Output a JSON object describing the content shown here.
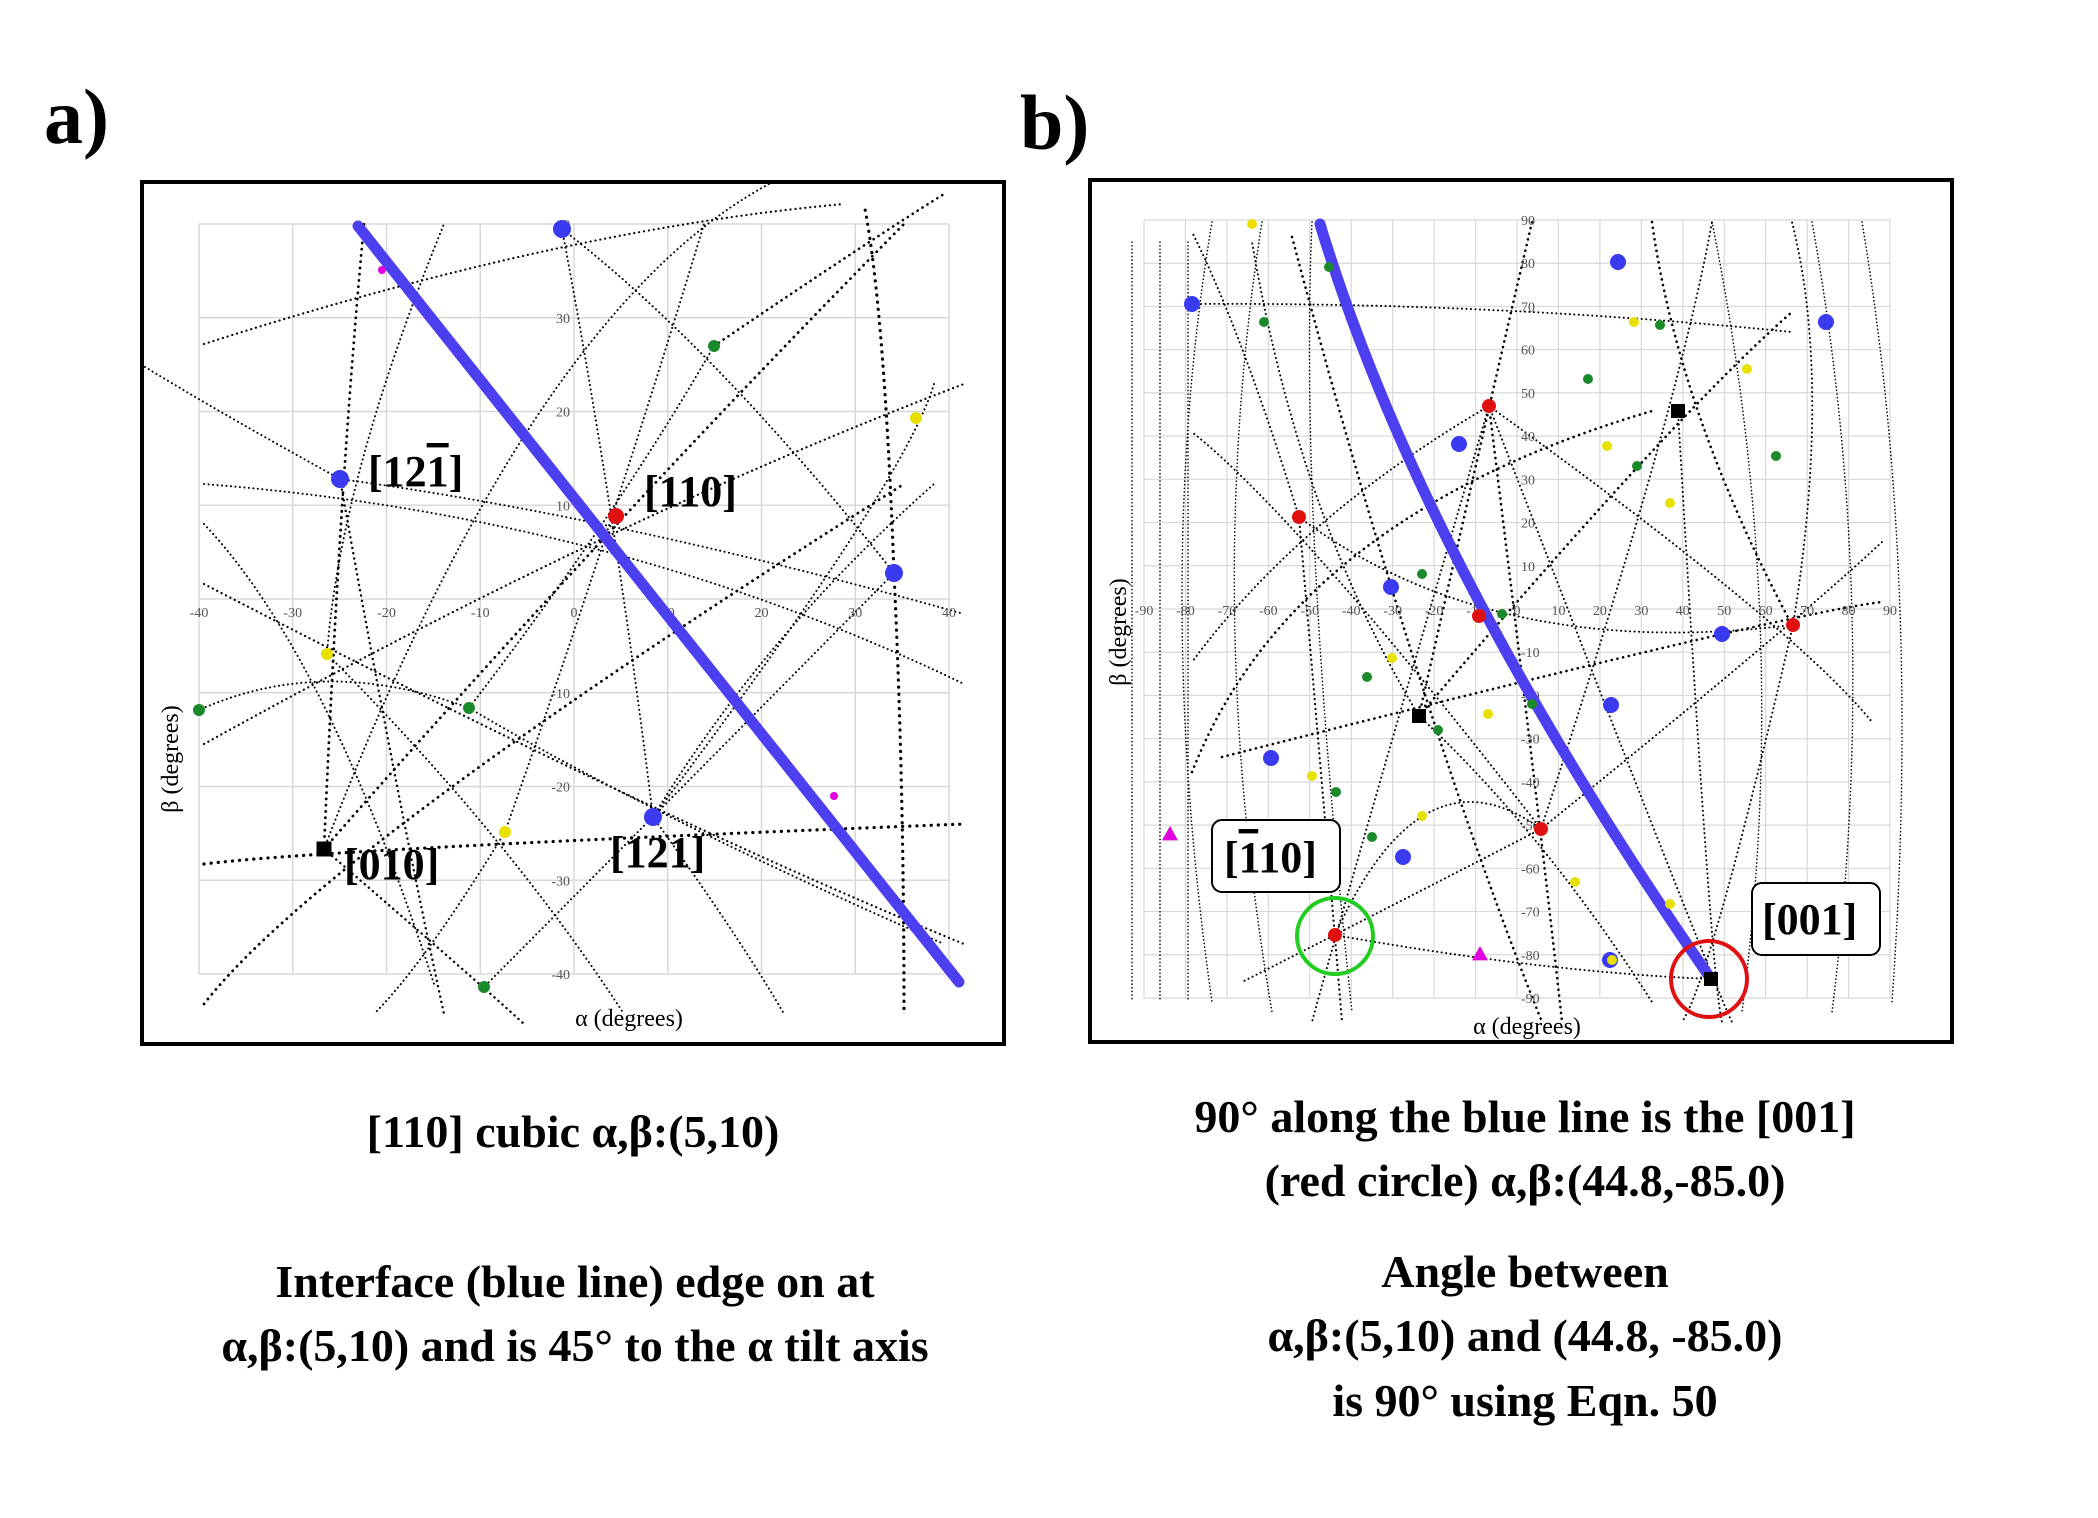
{
  "panel_a": {
    "letter": "a)",
    "x_axis_title": "α (degrees)",
    "y_axis_title": "β (degrees)",
    "ticks": [
      "-40",
      "-30",
      "-20",
      "-10",
      "0",
      "10",
      "20",
      "30",
      "40"
    ],
    "labels": {
      "p_121bar": {
        "pre": "[12",
        "bar": "1",
        "post": "]"
      },
      "p_110": "[110]",
      "p_010": "[010]",
      "p_121": "[121]"
    },
    "caption": {
      "line1": "[110] cubic  α,β:(5,10)",
      "line2": "Interface (blue line) edge on at",
      "line3": "α,β:(5,10) and is 45° to the α tilt axis"
    }
  },
  "panel_b": {
    "letter": "b)",
    "x_axis_title": "α (degrees)",
    "y_axis_title": "β (degrees)",
    "x_ticks": [
      "-90",
      "-80",
      "-70",
      "-60",
      "-50",
      "-40",
      "-30",
      "-20",
      "-10",
      "0",
      "10",
      "20",
      "30",
      "40",
      "50",
      "60",
      "70",
      "80",
      "90"
    ],
    "y_ticks": [
      "90",
      "80",
      "70",
      "60",
      "50",
      "40",
      "30",
      "20",
      "10",
      "-10",
      "-20",
      "-30",
      "-40",
      "-50",
      "-60",
      "-70",
      "-80",
      "-90"
    ],
    "labels": {
      "p_1bar10": {
        "pre": "[",
        "bar": "1",
        "post": "10]"
      },
      "p_001": "[001]"
    },
    "caption": {
      "line1": "90° along the blue line is the [001]",
      "line2": "(red circle) α,β:(44.8,-85.0)",
      "line3": "Angle between",
      "line4": "α,β:(5,10) and (44.8, -85.0)",
      "line5": "is 90° using Eqn. 50"
    }
  },
  "colors": {
    "interface_line": "#4b3ff0",
    "pole_blue": "#3a3af0",
    "pole_red": "#e01010",
    "pole_green": "#1a8a2a",
    "pole_yellow": "#e8e000",
    "pole_magenta": "#e000e0",
    "circle_green": "#22cc22",
    "circle_red": "#e01010",
    "grid": "#d8d8d8"
  }
}
